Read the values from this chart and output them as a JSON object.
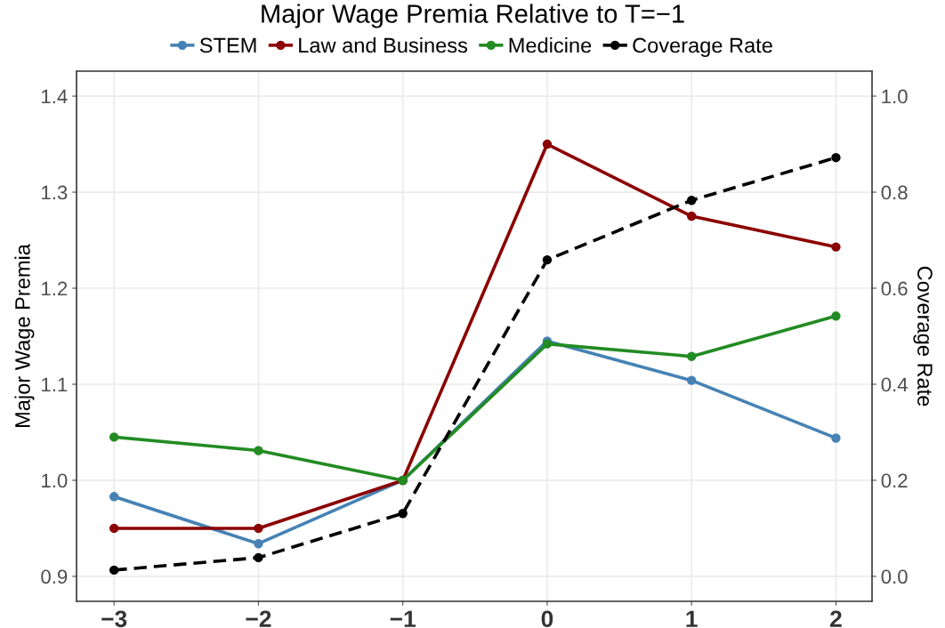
{
  "chart_data": {
    "type": "line",
    "title": "Major Wage Premia Relative to T=−1",
    "ylabel": "Major Wage Premia",
    "y2label": "Coverage Rate",
    "x": [
      -3,
      -2,
      -1,
      0,
      1,
      2
    ],
    "series": [
      {
        "name": "STEM",
        "color": "#4682b4",
        "values": [
          0.983,
          0.934,
          1.0,
          1.145,
          1.104,
          1.044
        ]
      },
      {
        "name": "Law and Business",
        "color": "#8b0000",
        "values": [
          0.95,
          0.95,
          1.0,
          1.35,
          1.275,
          1.243
        ]
      },
      {
        "name": "Medicine",
        "color": "#228b22",
        "values": [
          1.045,
          1.031,
          1.0,
          1.142,
          1.129,
          1.171
        ]
      },
      {
        "name": "Coverage Rate",
        "color": "#000000",
        "values": [
          0.013,
          0.039,
          0.131,
          0.659,
          0.783,
          0.872
        ],
        "axis": "y2",
        "line_style": "dashed"
      }
    ],
    "xlim": [
      -3.26,
      2.25
    ],
    "xticks": [
      {
        "value": -3,
        "label": "−3"
      },
      {
        "value": -2,
        "label": "−2"
      },
      {
        "value": -1,
        "label": "−1"
      },
      0,
      1,
      2
    ],
    "ylim": [
      0.874,
      1.426
    ],
    "yticks": [
      0.9,
      {
        "value": 1.0,
        "label": "1.0"
      },
      1.1,
      1.2,
      1.3,
      1.4
    ],
    "y2lim": [
      -0.052,
      1.052
    ],
    "y2ticks": [
      {
        "value": 0.0,
        "label": "0.0"
      },
      0.2,
      0.4,
      0.6,
      0.8,
      {
        "value": 1.0,
        "label": "1.0"
      }
    ],
    "grid": true,
    "legend": "top",
    "marker": "circle",
    "line_style": "solid"
  }
}
